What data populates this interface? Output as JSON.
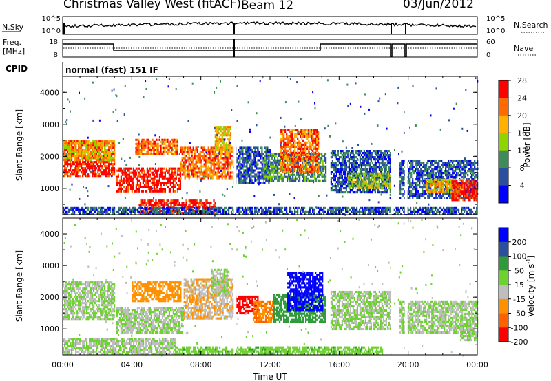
{
  "header": {
    "title": "Christmas Valley West (fitACF)",
    "beam": "Beam 12",
    "date": "03/Jun/2012"
  },
  "strip_panels": {
    "nsky": {
      "label": "N.Sky",
      "ticks_left": [
        "10^5",
        "10^0"
      ],
      "right_label": "N.Search",
      "ticks_right": [
        "10^5",
        "10^0"
      ]
    },
    "freq": {
      "label_line1": "Freq.",
      "label_line2": "[MHz]",
      "ticks_left": [
        "18",
        "8"
      ],
      "right_label": "Nave",
      "ticks_right": [
        "60",
        "0"
      ]
    },
    "cpid": {
      "label": "CPID",
      "value": "normal (fast) 151 IF"
    }
  },
  "chart_data": [
    {
      "type": "heatmap",
      "panel": "power",
      "ylabel": "Slant Range [km]",
      "xlabel": "",
      "x_range_hours": [
        0,
        24
      ],
      "ylim_km": [
        180,
        4500
      ],
      "y_ticks": [
        1000,
        2000,
        3000,
        4000
      ],
      "x_ticks": [
        "00:00",
        "04:00",
        "08:00",
        "12:00",
        "16:00",
        "20:00",
        "00:00"
      ],
      "colorbar": {
        "label": "Power [dB]",
        "ticks": [
          "4",
          "8",
          "12",
          "16",
          "20",
          "24",
          "28"
        ],
        "colors": [
          "#0000ff",
          "#2b4f9e",
          "#3d8c5a",
          "#8fd400",
          "#ffb000",
          "#ff6a00",
          "#ff0000"
        ]
      },
      "regions": [
        {
          "t0": 0.0,
          "t1": 3.0,
          "r0": 1350,
          "r1": 2500,
          "level": 28
        },
        {
          "t0": 0.0,
          "t1": 3.0,
          "r0": 1900,
          "r1": 2500,
          "level": 20
        },
        {
          "t0": 3.1,
          "t1": 6.8,
          "r0": 900,
          "r1": 1650,
          "level": 28
        },
        {
          "t0": 4.2,
          "t1": 6.6,
          "r0": 2050,
          "r1": 2550,
          "level": 24
        },
        {
          "t0": 6.8,
          "t1": 9.8,
          "r0": 1300,
          "r1": 2300,
          "level": 24
        },
        {
          "t0": 8.8,
          "t1": 9.7,
          "r0": 2200,
          "r1": 2950,
          "level": 20
        },
        {
          "t0": 4.4,
          "t1": 8.8,
          "r0": 250,
          "r1": 650,
          "level": 28
        },
        {
          "t0": 9.9,
          "t1": 12.0,
          "r0": 1200,
          "r1": 2300,
          "level": 8
        },
        {
          "t0": 11.6,
          "t1": 15.2,
          "r0": 1200,
          "r1": 2100,
          "level": 12
        },
        {
          "t0": 12.6,
          "t1": 14.8,
          "r0": 1500,
          "r1": 2850,
          "level": 24
        },
        {
          "t0": 15.5,
          "t1": 19.0,
          "r0": 900,
          "r1": 2200,
          "level": 8
        },
        {
          "t0": 16.5,
          "t1": 19.0,
          "r0": 1000,
          "r1": 1500,
          "level": 16
        },
        {
          "t0": 19.5,
          "t1": 24.0,
          "r0": 700,
          "r1": 1900,
          "level": 8
        },
        {
          "t0": 21.0,
          "t1": 23.2,
          "r0": 900,
          "r1": 1300,
          "level": 20
        },
        {
          "t0": 22.5,
          "t1": 24.0,
          "r0": 650,
          "r1": 1250,
          "level": 28
        },
        {
          "t0": 0.0,
          "t1": 24.0,
          "r0": 190,
          "r1": 420,
          "level": 8
        }
      ]
    },
    {
      "type": "heatmap",
      "panel": "velocity",
      "ylabel": "Slant Range [km]",
      "xlabel": "Time UT",
      "x_range_hours": [
        0,
        24
      ],
      "ylim_km": [
        180,
        4500
      ],
      "y_ticks": [
        1000,
        2000,
        3000,
        4000
      ],
      "x_ticks": [
        "00:00",
        "04:00",
        "08:00",
        "12:00",
        "16:00",
        "20:00",
        "00:00"
      ],
      "colorbar": {
        "label": "Velocity [m s",
        "label_sup": "-1",
        "label_end": "]",
        "ticks": [
          "200",
          "100",
          "50",
          "15",
          "-15",
          "-50",
          "-100",
          "-200"
        ],
        "colors": [
          "#0000ff",
          "#2b4f9e",
          "#2e9a3a",
          "#6ed22e",
          "#bebebe",
          "#ff9000",
          "#ff6000",
          "#ff0000"
        ]
      },
      "regions": [
        {
          "t0": 0.0,
          "t1": 3.0,
          "r0": 1300,
          "r1": 2500,
          "level": 0
        },
        {
          "t0": 3.1,
          "t1": 7.0,
          "r0": 900,
          "r1": 1700,
          "level": 0
        },
        {
          "t0": 4.0,
          "t1": 6.8,
          "r0": 1900,
          "r1": 2500,
          "level": -60
        },
        {
          "t0": 7.0,
          "t1": 9.8,
          "r0": 1300,
          "r1": 2600,
          "level": -30
        },
        {
          "t0": 8.6,
          "t1": 9.6,
          "r0": 2100,
          "r1": 2900,
          "level": 0
        },
        {
          "t0": 9.9,
          "t1": 11.3,
          "r0": 1500,
          "r1": 2050,
          "level": -250
        },
        {
          "t0": 11.0,
          "t1": 12.2,
          "r0": 1200,
          "r1": 1900,
          "level": -70
        },
        {
          "t0": 12.2,
          "t1": 15.2,
          "r0": 1200,
          "r1": 2100,
          "level": 60
        },
        {
          "t0": 13.0,
          "t1": 15.0,
          "r0": 1600,
          "r1": 2800,
          "level": 250
        },
        {
          "t0": 15.5,
          "t1": 19.0,
          "r0": 1000,
          "r1": 2200,
          "level": 0
        },
        {
          "t0": 19.5,
          "t1": 24.0,
          "r0": 900,
          "r1": 1900,
          "level": 0
        },
        {
          "t0": 23.0,
          "t1": 24.0,
          "r0": 650,
          "r1": 1200,
          "level": 0
        },
        {
          "t0": 6.5,
          "t1": 18.5,
          "r0": 190,
          "r1": 450,
          "level": 20
        },
        {
          "t0": 0.0,
          "t1": 6.5,
          "r0": 190,
          "r1": 700,
          "level": 0
        }
      ]
    }
  ]
}
